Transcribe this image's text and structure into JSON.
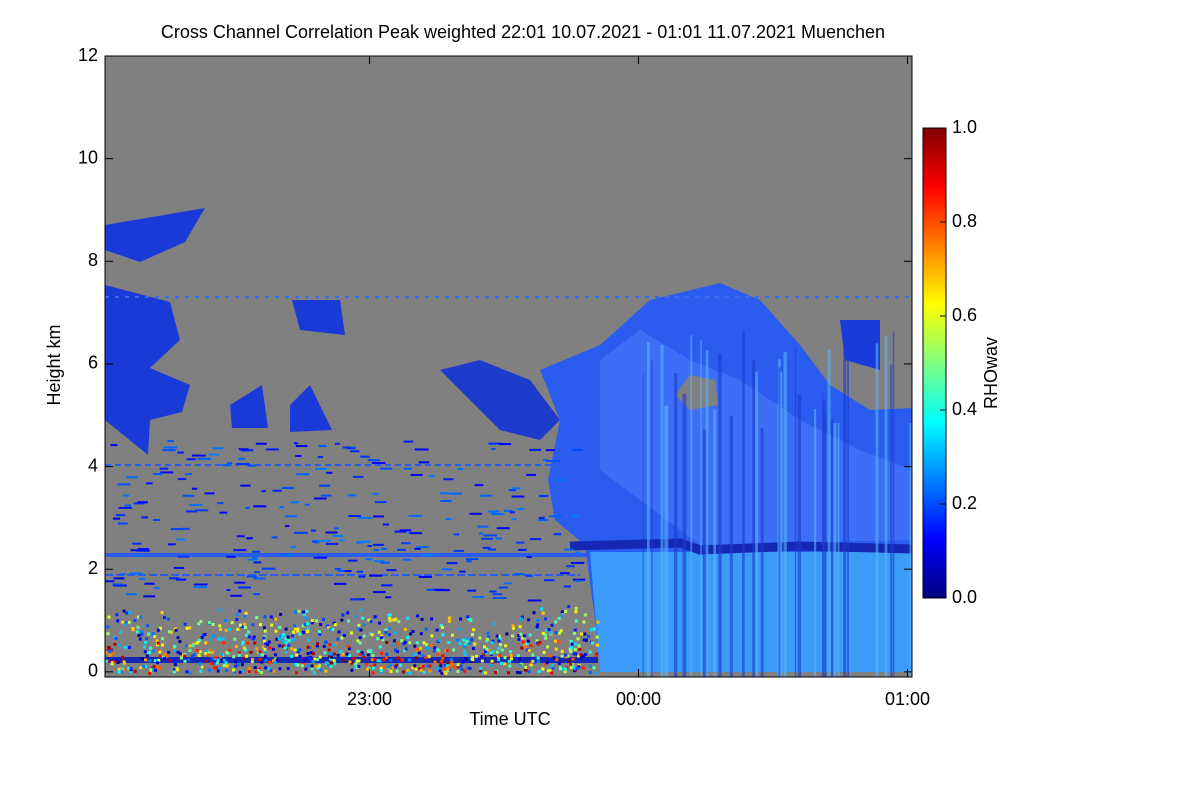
{
  "chart_data": {
    "type": "heatmap",
    "title": "Cross Channel Correlation Peak weighted   22:01 10.07.2021 - 01:01 11.07.2021 Muenchen",
    "xlabel": "Time UTC",
    "ylabel": "Height km",
    "colorbar_label": "RHOwav",
    "colormap": "jet",
    "xlim": [
      22.0167,
      25.0167
    ],
    "xticks": [
      {
        "value": 23,
        "label": "23:00"
      },
      {
        "value": 24,
        "label": "00:00"
      },
      {
        "value": 25,
        "label": "01:00"
      }
    ],
    "ylim": [
      -0.1,
      12
    ],
    "yticks": [
      0,
      2,
      4,
      6,
      8,
      10,
      12
    ],
    "clim": [
      0,
      1
    ],
    "cticks": [
      {
        "value": 0,
        "label": "0.0"
      },
      0.2,
      0.4,
      0.6,
      0.8,
      {
        "value": 1,
        "label": "1.0"
      }
    ]
  }
}
